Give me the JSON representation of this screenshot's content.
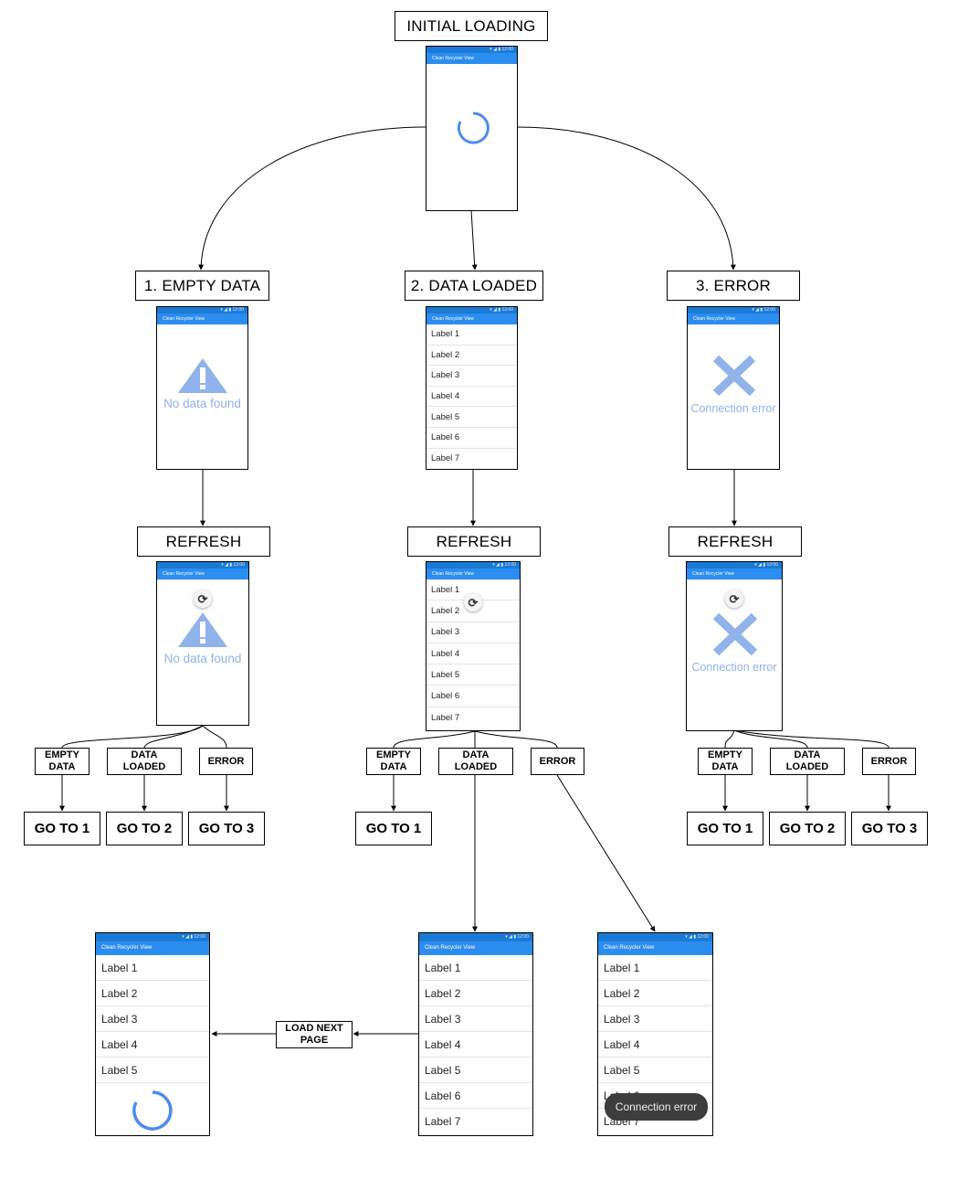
{
  "app_title": "Clean Recycler View",
  "status_icons": "▾ ◢ ▮ 12:00",
  "colors": {
    "primary": "#2c8df0",
    "status": "#1a7ad6",
    "accent_icon": "#8fb3ea",
    "spinner": "#4a8cf0"
  },
  "labels": {
    "initial": "INITIAL LOADING",
    "empty_data": "1. EMPTY DATA",
    "data_loaded": "2. DATA LOADED",
    "error": "3. ERROR",
    "refresh": "REFRESH",
    "empty": "EMPTY\nDATA",
    "loaded": "DATA\nLOADED",
    "err": "ERROR",
    "go1": "GO TO 1",
    "go2": "GO TO 2",
    "go3": "GO TO 3",
    "load_next": "LOAD NEXT\nPAGE"
  },
  "messages": {
    "no_data": "No data found",
    "connection_error": "Connection error"
  },
  "list_items": [
    "Label 1",
    "Label 2",
    "Label 3",
    "Label 4",
    "Label 5",
    "Label 6",
    "Label 7"
  ],
  "list_items_page": [
    "Label 1",
    "Label 2",
    "Label 3",
    "Label 4",
    "Label 5"
  ],
  "icons": {
    "warning": "warning-triangle-icon",
    "error": "x-cross-icon",
    "refresh": "refresh-icon",
    "spinner": "loading-spinner-icon"
  }
}
